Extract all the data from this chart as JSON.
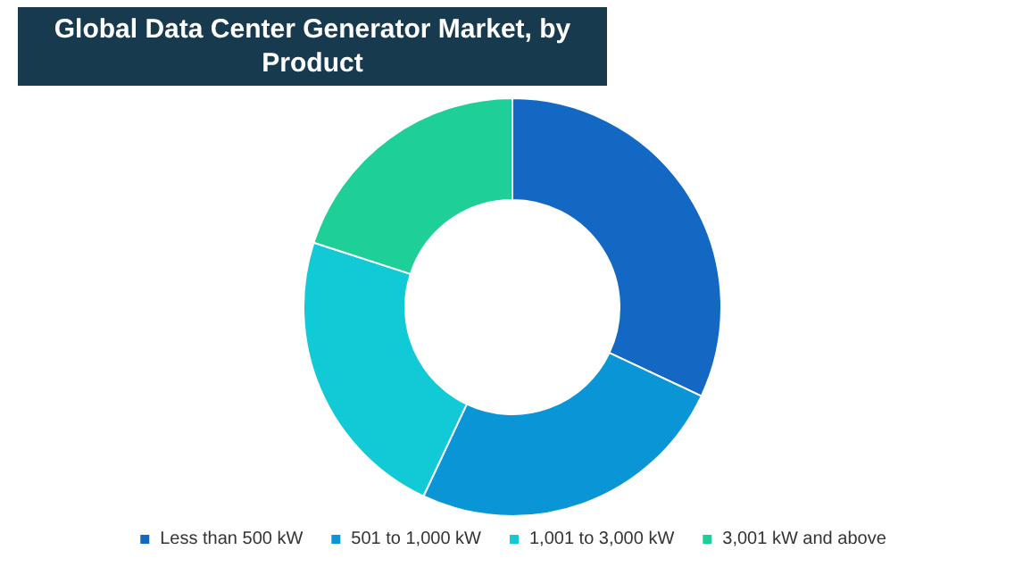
{
  "chart_data": {
    "type": "donut",
    "title": "Global Data Center Generator Market, by Product",
    "categories": [
      "Less than 500 kW",
      "501 to 1,000 kW",
      "1,001 to 3,000 kW",
      "3,001 kW and above"
    ],
    "values": [
      32,
      25,
      23,
      20
    ],
    "colors": [
      "#1368c4",
      "#0a96d6",
      "#12c9d6",
      "#1fcf98"
    ],
    "legend": "bottom"
  }
}
